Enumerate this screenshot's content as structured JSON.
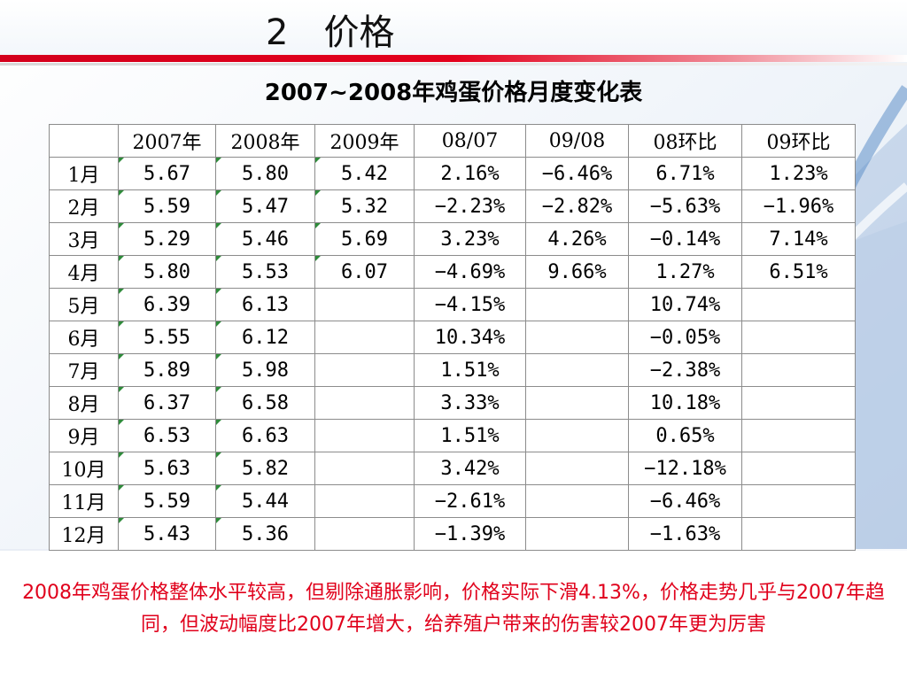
{
  "slide": {
    "title": "2　价格",
    "table_title": "2007~2008年鸡蛋价格月度变化表",
    "footnote": "2008年鸡蛋价格整体水平较高，但剔除通胀影响，价格实际下滑4.13%，价格走势几乎与2007年趋同，但波动幅度比2007年增大，给养殖户带来的伤害较2007年更为厉害"
  },
  "table": {
    "headers": [
      "",
      "2007年",
      "2008年",
      "2009年",
      "08/07",
      "09/08",
      "08环比",
      "09环比"
    ],
    "rows": [
      [
        "1月",
        "5.67",
        "5.80",
        "5.42",
        "2.16%",
        "−6.46%",
        "6.71%",
        "1.23%"
      ],
      [
        "2月",
        "5.59",
        "5.47",
        "5.32",
        "−2.23%",
        "−2.82%",
        "−5.63%",
        "−1.96%"
      ],
      [
        "3月",
        "5.29",
        "5.46",
        "5.69",
        "3.23%",
        "4.26%",
        "−0.14%",
        "7.14%"
      ],
      [
        "4月",
        "5.80",
        "5.53",
        "6.07",
        "−4.69%",
        "9.66%",
        "1.27%",
        "6.51%"
      ],
      [
        "5月",
        "6.39",
        "6.13",
        "",
        "−4.15%",
        "",
        "10.74%",
        ""
      ],
      [
        "6月",
        "5.55",
        "6.12",
        "",
        "10.34%",
        "",
        "−0.05%",
        ""
      ],
      [
        "7月",
        "5.89",
        "5.98",
        "",
        "1.51%",
        "",
        "−2.38%",
        ""
      ],
      [
        "8月",
        "6.37",
        "6.58",
        "",
        "3.33%",
        "",
        "10.18%",
        ""
      ],
      [
        "9月",
        "6.53",
        "6.63",
        "",
        "1.51%",
        "",
        "0.65%",
        ""
      ],
      [
        "10月",
        "5.63",
        "5.82",
        "",
        "3.42%",
        "",
        "−12.18%",
        ""
      ],
      [
        "11月",
        "5.59",
        "5.44",
        "",
        "−2.61%",
        "",
        "−6.46%",
        ""
      ],
      [
        "12月",
        "5.43",
        "5.36",
        "",
        "−1.39%",
        "",
        "−1.63%",
        ""
      ]
    ]
  },
  "colors": {
    "accent_red": "#e0001b",
    "cell_marker_green": "#2e8b3a",
    "background_blue": "#5f8fc8"
  }
}
